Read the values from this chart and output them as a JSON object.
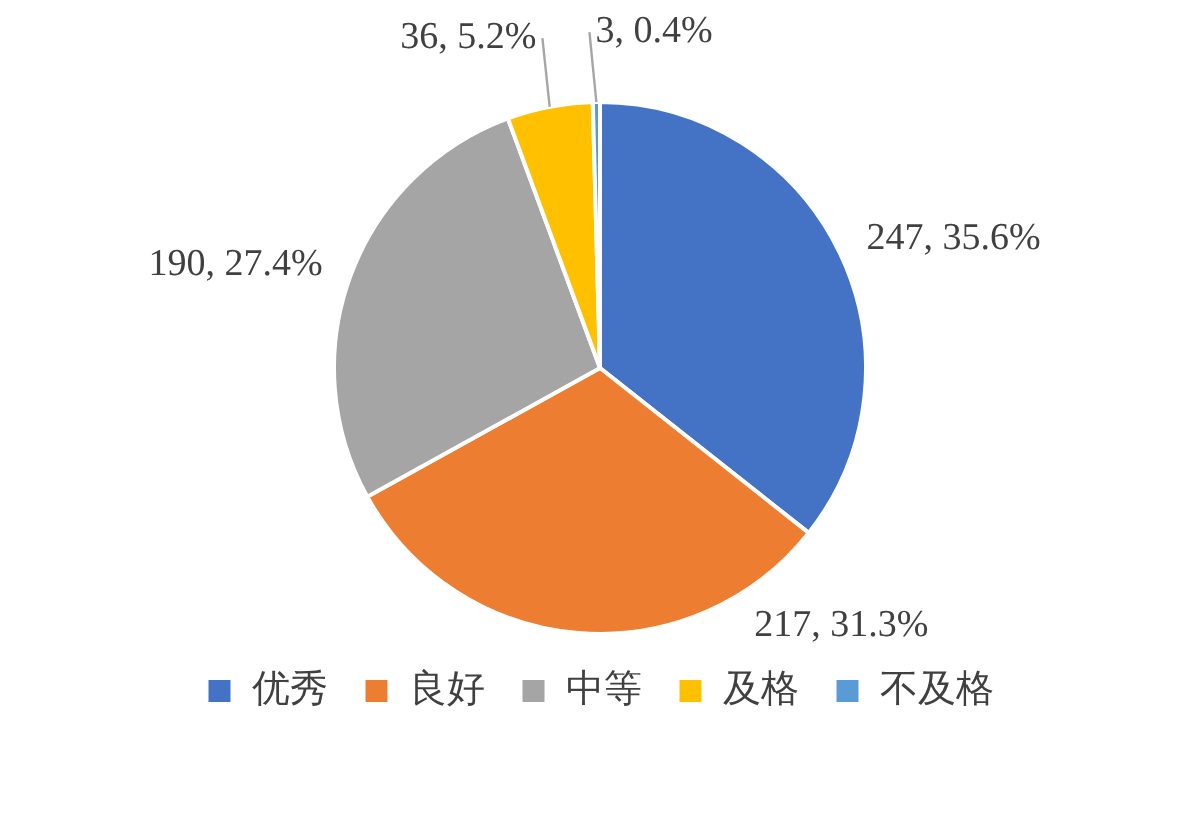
{
  "chart_data": {
    "type": "pie",
    "categories": [
      "优秀",
      "良好",
      "中等",
      "及格",
      "不及格"
    ],
    "values": [
      247,
      217,
      190,
      36,
      3
    ],
    "colors": [
      "#4472c4",
      "#ed7d31",
      "#a5a5a5",
      "#ffc000",
      "#5b9bd5"
    ],
    "value_labels": [
      "247, 35.6%",
      "217, 31.3%",
      "190, 27.4%",
      "36, 5.2%",
      "3, 0.4%"
    ],
    "legend": "bottom"
  }
}
